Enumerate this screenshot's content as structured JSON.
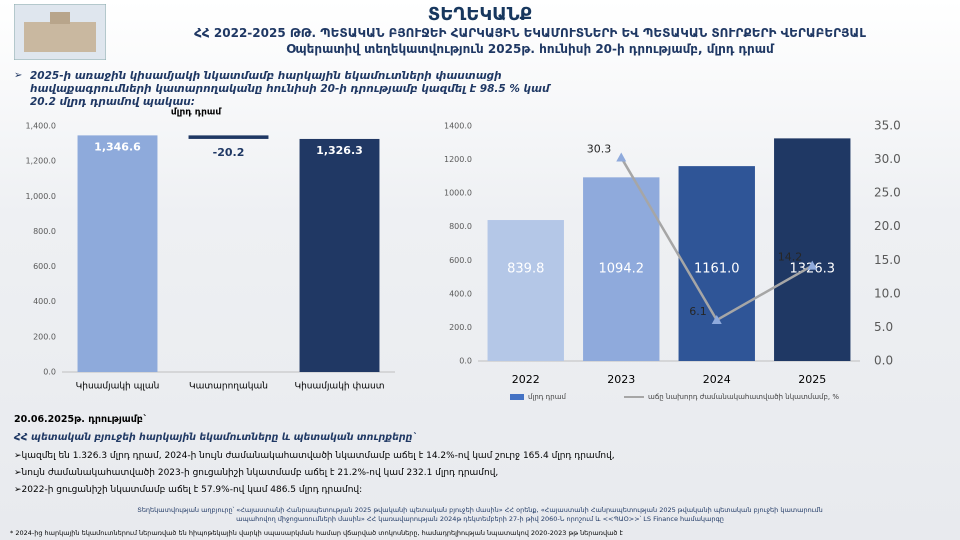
{
  "header": {
    "title": "ՏԵՂԵԿԱՆՔ",
    "subtitle": "ՀՀ 2022-2025 ԹԹ. ՊԵՏԱԿԱՆ ԲՅՈՒՋԵԻ ՀԱՐԿԱՅԻՆ ԵԿԱՄՈՒՏՆԵՐԻ ԵՎ ՊԵՏԱԿԱՆ ՏՈՒՐՔԵՐԻ ՎԵՐԱԲԵՐՅԱԼ",
    "note": "Օպերատիվ տեղեկատվություն 2025թ. հունիսի 20-ի դրությամբ, մլրդ դրամ"
  },
  "headline": "2025-ի առաջին կիսամյակի նկատմամբ հարկային եկամուտների փաստացի հավաքագրումների կատարողականը հունիսի 20-ի դրությամբ կազմել է 98.5 % կամ 20.2 մլրդ դրամով պակաս:",
  "chart_data": [
    {
      "type": "waterfall",
      "unit_label": "մլրդ դրամ",
      "categories": [
        "Կիսամյակի պլան",
        "Կատարողական",
        "Կիսամյակի փաստ"
      ],
      "values": [
        1346.6,
        -20.2,
        1326.3
      ],
      "value_labels": [
        "1,346.6",
        "-20.2",
        "1,326.3"
      ],
      "totals": [
        true,
        false,
        true
      ],
      "colors": [
        "#8eaadb",
        "#1f3864",
        "#203864"
      ],
      "ylim": [
        0,
        1400
      ],
      "yticks": [
        {
          "value": 0,
          "label": "0.0"
        },
        {
          "value": 200,
          "label": "200.0"
        },
        {
          "value": 400,
          "label": "400.0"
        },
        {
          "value": 600,
          "label": "600.0"
        },
        {
          "value": 800,
          "label": "800.0"
        },
        {
          "value": 1000,
          "label": "1,000.0"
        },
        {
          "value": 1200,
          "label": "1,200.0"
        },
        {
          "value": 1400,
          "label": "1,400.0"
        }
      ],
      "grid": false
    },
    {
      "type": "combo",
      "categories": [
        "2022",
        "2023",
        "2024",
        "2025"
      ],
      "series": [
        {
          "name": "մլրդ դրամ",
          "type": "bar",
          "colors": [
            "#b4c7e7",
            "#8faadc",
            "#2f5597",
            "#1f3864"
          ],
          "color": "#4472c4",
          "values": [
            839.8,
            1094.2,
            1161.0,
            1326.3
          ],
          "value_labels": [
            "839.8",
            "1094.2",
            "1161.0",
            "1326.3"
          ]
        },
        {
          "name": "աճը նախորդ ժամանակահատվածի նկատմամբ, %",
          "type": "line",
          "axis": "y2",
          "color": "#a6a6a6",
          "values": [
            null,
            30.3,
            6.1,
            14.2
          ]
        }
      ],
      "ylim": [
        0,
        1400
      ],
      "yticks": [
        {
          "value": 0,
          "label": "0.0"
        },
        {
          "value": 200,
          "label": "200.0"
        },
        {
          "value": 400,
          "label": "400.0"
        },
        {
          "value": 600,
          "label": "600.0"
        },
        {
          "value": 800,
          "label": "800.0"
        },
        {
          "value": 1000,
          "label": "1000.0"
        },
        {
          "value": 1200,
          "label": "1200.0"
        },
        {
          "value": 1400,
          "label": "1400.0"
        }
      ],
      "y2lim": [
        0,
        35
      ],
      "y2ticks": [
        {
          "value": 0,
          "label": "0.0"
        },
        {
          "value": 5,
          "label": "5.0"
        },
        {
          "value": 10,
          "label": "10.0"
        },
        {
          "value": 15,
          "label": "15.0"
        },
        {
          "value": 20,
          "label": "20.0"
        },
        {
          "value": 25,
          "label": "25.0"
        },
        {
          "value": 30,
          "label": "30.0"
        },
        {
          "value": 35,
          "label": "35.0"
        }
      ],
      "grid": false,
      "legend": "bottom"
    }
  ],
  "footer": {
    "date": "20.06.2025թ. դրությամբ`",
    "heading": "ՀՀ պետական բյուջեի հարկային եկամուտները և պետական տուրքերը`",
    "bullets": [
      "կազմել են 1.326.3 մլրդ դրամ, 2024-ի նույն ժամանակահատվածի նկատմամբ աճել է 14.2%-ով կամ շուրջ 165.4 մլրդ դրամով,",
      "նույն ժամանակահատվածի 2023-ի ցուցանիշի նկատմամբ աճել է 21.2%-ով կամ 232.1 մլրդ դրամով,",
      "2022-ի ցուցանիշի նկատմամբ աճել է 57.9%-ով կամ 486.5 մլրդ դրամով:"
    ],
    "source": "Տեղեկատվության աղբյուրը՝ «Հայաստանի Հանրապետության 2025 թվականի պետական բյուջեի մասին» ՀՀ օրենք, «Հայաստանի Հանրապետության 2025 թվականի պետական բյուջեի կատարումն ապահովող միջոցառումների մասին» ՀՀ կառավարության 2024թ դեկտեմբերի 27-ի թիվ 2060-Ն որոշում և <<ՊԱՕ>>՝ LS Finance համակարգը",
    "footnote": "* 2024-ից  հարկային եկամուտներում ներառված են հիպոթեկային վարկի սպասարկման համար վճարված տոկոսները, համադրելիության նպատակով 2020-2023 թթ ներառված է"
  }
}
